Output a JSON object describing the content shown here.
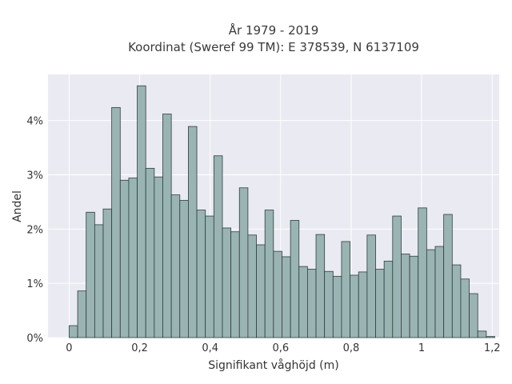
{
  "chart_data": {
    "type": "bar",
    "title": "År 1979 - 2019",
    "subtitle": "Koordinat (Sweref 99 TM): E 378539, N 6137109",
    "xlabel": "Signifikant våghöjd (m)",
    "ylabel": "Andel",
    "xlim": [
      -0.06,
      1.22
    ],
    "ylim": [
      0,
      0.0485
    ],
    "xticks": [
      0,
      0.2,
      0.4,
      0.6,
      0.8,
      1.0,
      1.2
    ],
    "xtick_labels": [
      "0",
      "0,2",
      "0,4",
      "0,6",
      "0,8",
      "1",
      "1,2"
    ],
    "yticks": [
      0,
      0.01,
      0.02,
      0.03,
      0.04
    ],
    "ytick_labels": [
      "0%",
      "1%",
      "2%",
      "3%",
      "4%"
    ],
    "grid": true,
    "bin_width": 0.02415,
    "bin_start": 0,
    "values": [
      0.0022,
      0.0086,
      0.0231,
      0.0208,
      0.0237,
      0.0424,
      0.029,
      0.0294,
      0.0464,
      0.0312,
      0.0296,
      0.0412,
      0.0263,
      0.0253,
      0.0389,
      0.0235,
      0.0224,
      0.0335,
      0.0202,
      0.0195,
      0.0276,
      0.0189,
      0.0171,
      0.0235,
      0.0159,
      0.0149,
      0.0216,
      0.0131,
      0.0126,
      0.019,
      0.0122,
      0.0113,
      0.0177,
      0.0115,
      0.0121,
      0.0189,
      0.0126,
      0.0141,
      0.0224,
      0.0154,
      0.015,
      0.0239,
      0.0162,
      0.0168,
      0.0227,
      0.0134,
      0.0108,
      0.0081,
      0.0012,
      0.0002
    ],
    "colors": {
      "bar_fill": "#9ab4b4",
      "bar_stroke": "#2f3d3d",
      "plot_background": "#eaeaf2",
      "grid": "#ffffff"
    }
  }
}
